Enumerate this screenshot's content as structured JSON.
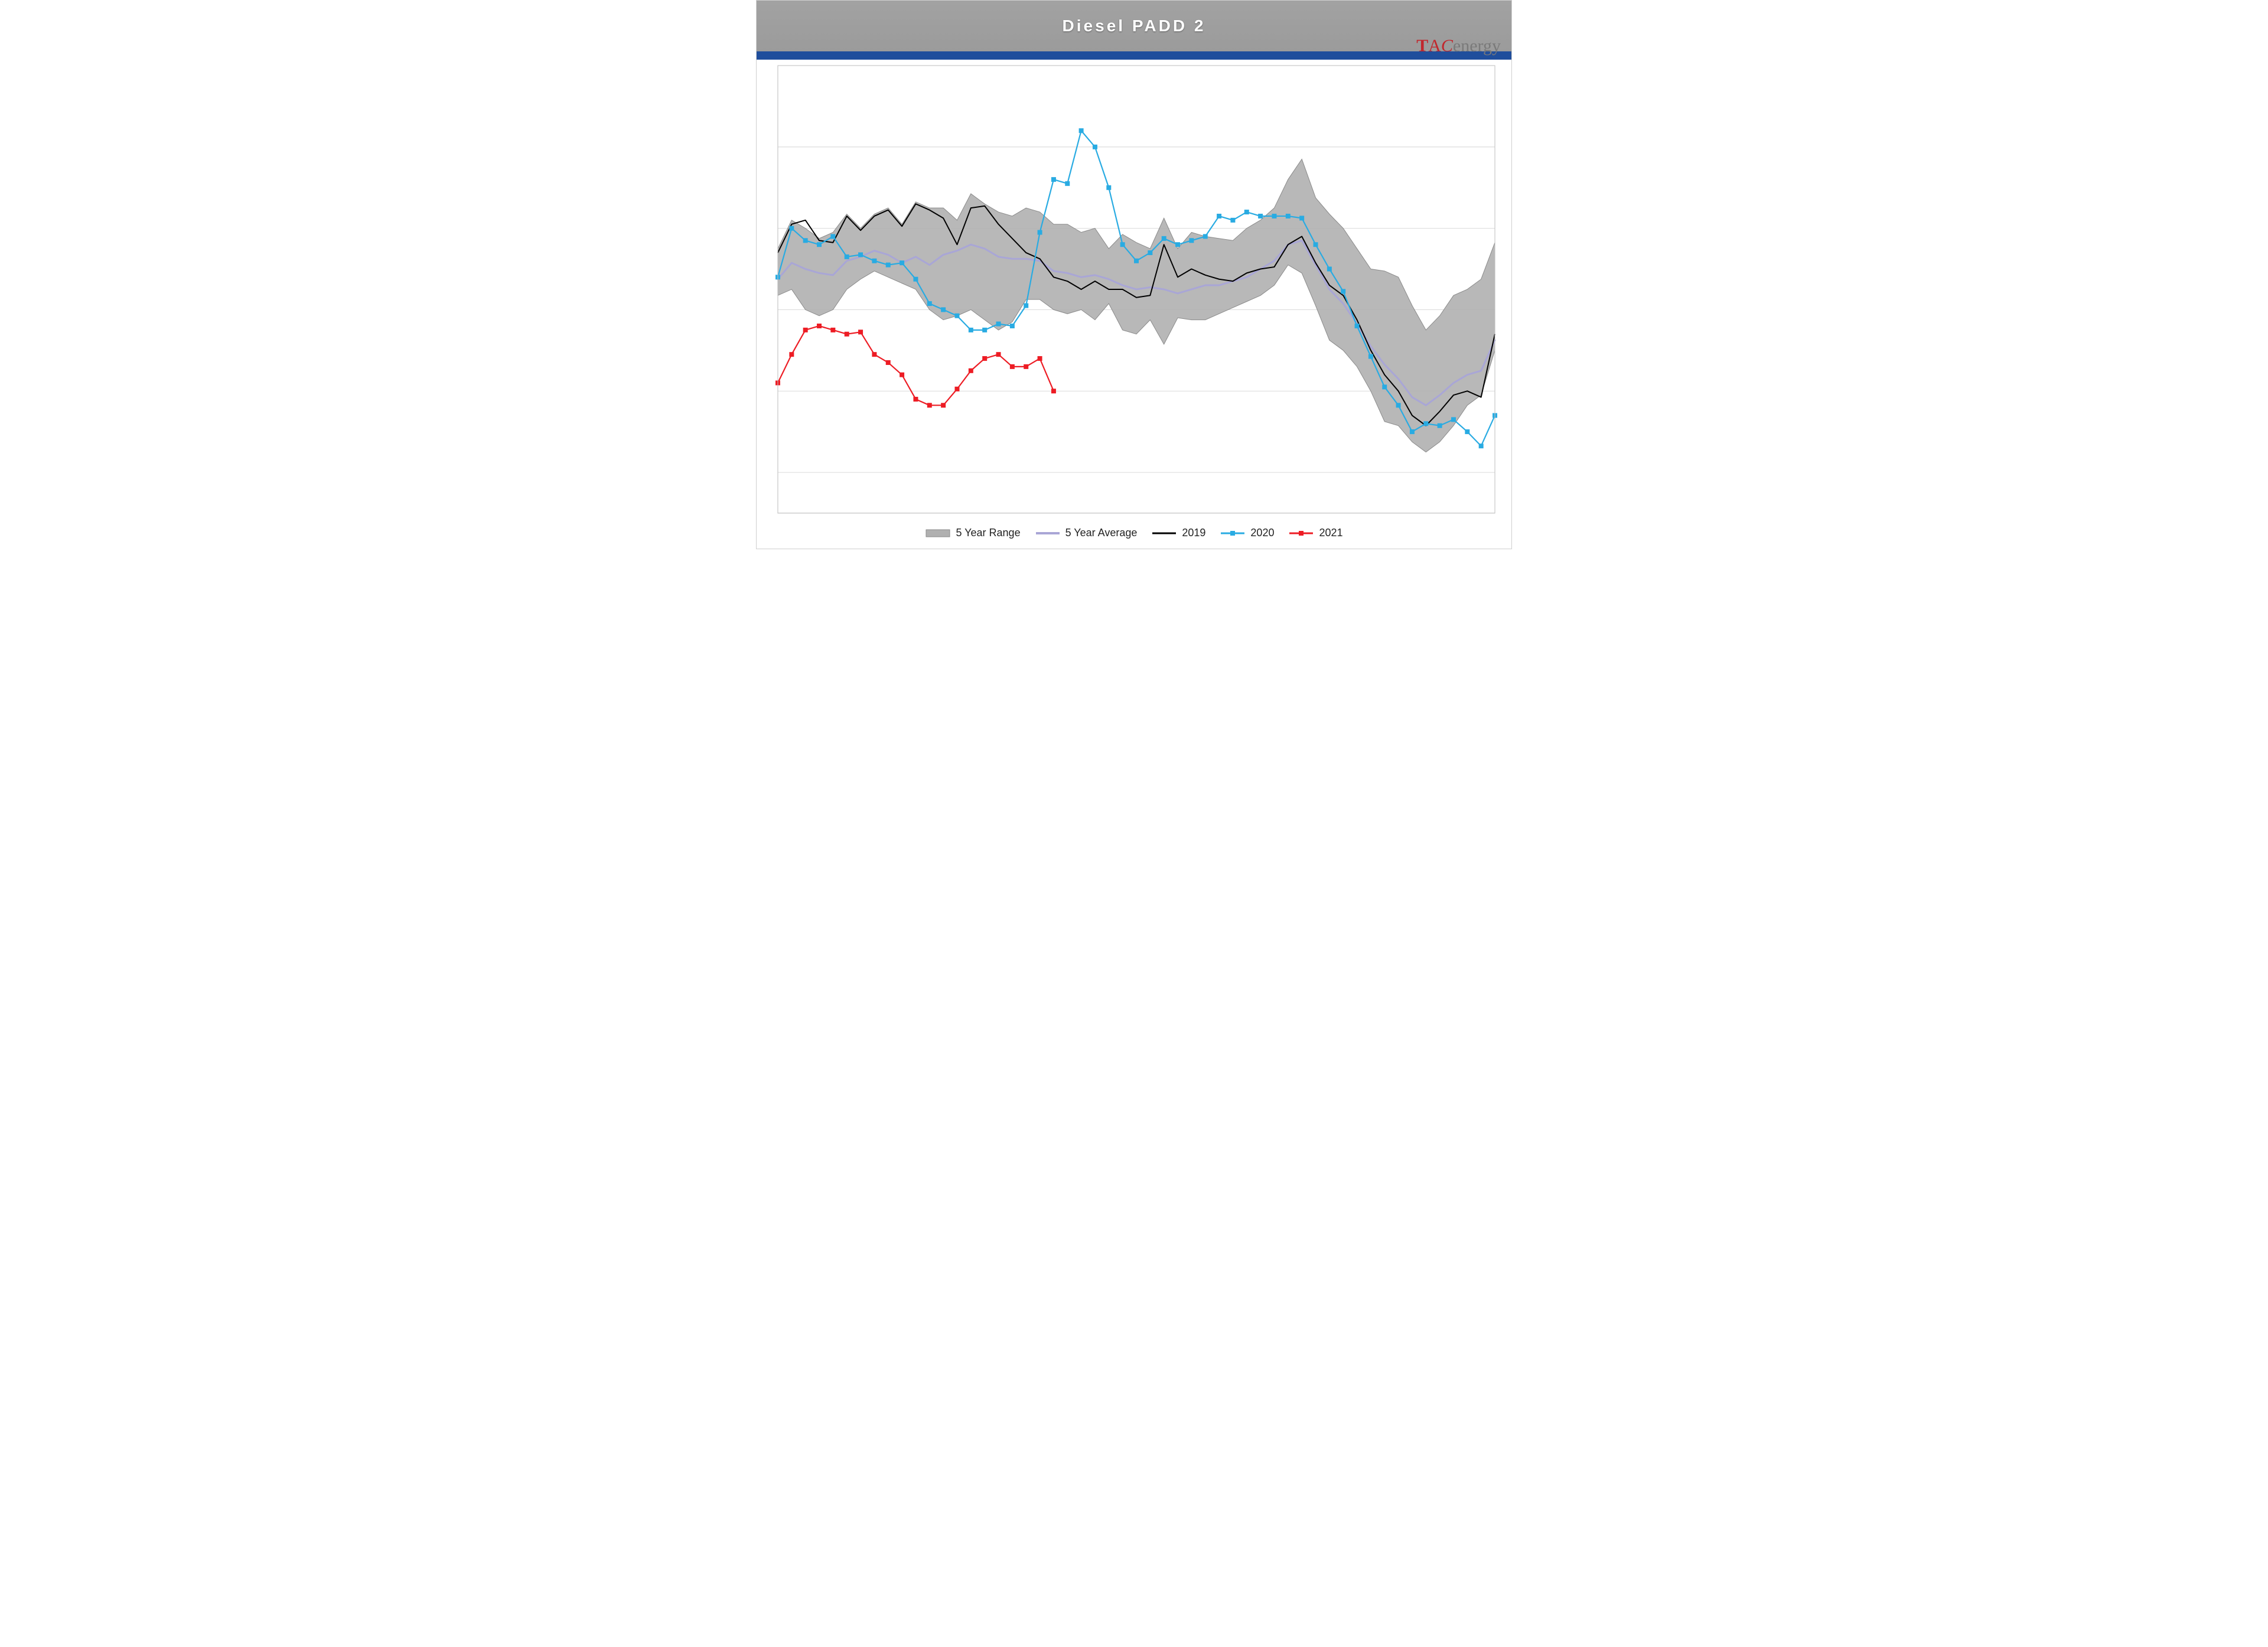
{
  "chart": {
    "type": "line-with-range-band",
    "title": "Diesel  PADD  2",
    "logo_text": {
      "prefix_tac": "TAC",
      "suffix": "energy"
    },
    "colors": {
      "title_bar_bg": "#9e9e9e",
      "accent_bar": "#1f4e9c",
      "plot_bg": "#ffffff",
      "grid": "#d9d9d9",
      "axis": "#bfbfbf",
      "range_fill": "#b0b0b0",
      "range_stroke": "#8a8a8a",
      "avg_line": "#a9a6d6",
      "s2019": "#000000",
      "s2020_line": "#29abe2",
      "s2020_marker": "#29abe2",
      "s2021_line": "#ed1c24",
      "s2021_marker": "#ed1c24",
      "legend_text": "#222222"
    },
    "typography": {
      "title_fontsize_pt": 21,
      "title_weight": "bold",
      "legend_fontsize_pt": 14
    },
    "x": {
      "n_weeks": 53,
      "xlim": [
        1,
        53
      ]
    },
    "y": {
      "ylim": [
        22,
        44
      ],
      "gridlines": [
        24,
        28,
        32,
        36,
        40,
        44
      ]
    },
    "line_styles": {
      "avg_width": 3.0,
      "s2019_width": 2.0,
      "s2020_width": 2.2,
      "s2021_width": 2.2,
      "marker_size": 8,
      "marker_shape": "square"
    },
    "legend": {
      "items": [
        {
          "key": "range",
          "label": "5 Year Range"
        },
        {
          "key": "avg",
          "label": "5 Year Average"
        },
        {
          "key": "s2019",
          "label": "2019"
        },
        {
          "key": "s2020",
          "label": "2020"
        },
        {
          "key": "s2021",
          "label": "2021"
        }
      ]
    },
    "series": {
      "range_upper": [
        35.0,
        36.4,
        36.0,
        35.5,
        35.8,
        36.7,
        36.0,
        36.7,
        37.0,
        36.2,
        37.3,
        37.0,
        37.0,
        36.4,
        37.7,
        37.2,
        36.8,
        36.6,
        37.0,
        36.8,
        36.2,
        36.2,
        35.8,
        36.0,
        35.0,
        35.7,
        35.3,
        35.0,
        36.5,
        35.0,
        35.8,
        35.6,
        35.5,
        35.4,
        36.0,
        36.4,
        37.0,
        38.4,
        39.4,
        37.5,
        36.7,
        36.0,
        35.0,
        34.0,
        33.9,
        33.6,
        32.2,
        31.0,
        31.7,
        32.7,
        33.0,
        33.5,
        35.3
      ],
      "range_lower": [
        32.7,
        33.0,
        32.0,
        31.7,
        32.0,
        33.0,
        33.5,
        33.9,
        33.6,
        33.3,
        33.0,
        32.0,
        31.5,
        31.7,
        32.0,
        31.5,
        31.0,
        31.4,
        32.5,
        32.5,
        32.0,
        31.8,
        32.0,
        31.5,
        32.3,
        31.0,
        30.8,
        31.5,
        30.3,
        31.6,
        31.5,
        31.5,
        31.8,
        32.1,
        32.4,
        32.7,
        33.2,
        34.2,
        33.8,
        32.2,
        30.5,
        30.0,
        29.2,
        28.0,
        26.5,
        26.3,
        25.5,
        25.0,
        25.5,
        26.3,
        27.3,
        27.8,
        30.0
      ],
      "avg": [
        33.5,
        34.3,
        34.0,
        33.8,
        33.7,
        34.4,
        34.6,
        34.9,
        34.7,
        34.3,
        34.6,
        34.2,
        34.7,
        34.9,
        35.2,
        35.0,
        34.6,
        34.5,
        34.5,
        34.4,
        33.9,
        33.8,
        33.6,
        33.7,
        33.5,
        33.2,
        33.0,
        33.1,
        33.0,
        32.8,
        33.0,
        33.2,
        33.2,
        33.4,
        33.6,
        34.0,
        34.4,
        35.2,
        35.4,
        34.2,
        33.0,
        32.3,
        31.3,
        30.2,
        29.3,
        28.6,
        27.7,
        27.3,
        27.8,
        28.4,
        28.8,
        29.0,
        30.5
      ],
      "s2019": [
        34.8,
        36.2,
        36.4,
        35.4,
        35.3,
        36.6,
        35.9,
        36.6,
        36.9,
        36.1,
        37.2,
        36.9,
        36.5,
        35.2,
        37.0,
        37.1,
        36.2,
        35.5,
        34.8,
        34.5,
        33.6,
        33.4,
        33.0,
        33.4,
        33.0,
        33.0,
        32.6,
        32.7,
        35.2,
        33.6,
        34.0,
        33.7,
        33.5,
        33.4,
        33.8,
        34.0,
        34.1,
        35.2,
        35.6,
        34.3,
        33.2,
        32.7,
        31.5,
        30.0,
        28.8,
        28.0,
        26.8,
        26.3,
        27.0,
        27.8,
        28.0,
        27.7,
        30.8
      ],
      "s2020": [
        33.6,
        36.0,
        35.4,
        35.2,
        35.6,
        34.6,
        34.7,
        34.4,
        34.2,
        34.3,
        33.5,
        32.3,
        32.0,
        31.7,
        31.0,
        31.0,
        31.3,
        31.2,
        32.2,
        35.8,
        38.4,
        38.2,
        40.8,
        40.0,
        38.0,
        35.2,
        34.4,
        34.8,
        35.5,
        35.2,
        35.4,
        35.6,
        36.6,
        36.4,
        36.8,
        36.6,
        36.6,
        36.6,
        36.5,
        35.2,
        34.0,
        32.9,
        31.2,
        29.7,
        28.2,
        27.3,
        26.0,
        26.4,
        26.3,
        26.6,
        26.0,
        25.3,
        26.8
      ],
      "s2021": [
        28.4,
        29.8,
        31.0,
        31.2,
        31.0,
        30.8,
        30.9,
        29.8,
        29.4,
        28.8,
        27.6,
        27.3,
        27.3,
        28.1,
        29.0,
        29.6,
        29.8,
        29.2,
        29.2,
        29.6,
        28.0
      ]
    }
  }
}
